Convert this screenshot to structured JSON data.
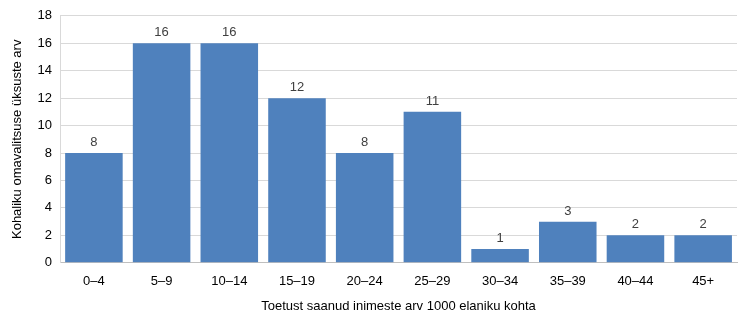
{
  "chart_data": {
    "type": "bar",
    "categories": [
      "0–4",
      "5–9",
      "10–14",
      "15–19",
      "20–24",
      "25–29",
      "30–34",
      "35–39",
      "40–44",
      "45+"
    ],
    "values": [
      8,
      16,
      16,
      12,
      8,
      11,
      1,
      3,
      2,
      2
    ],
    "color": "#4f81bd",
    "x_label": "Toetust saanud inimeste arv 1000 elaniku kohta",
    "y_label": "Kohaliku omavalitsuse üksuste arv",
    "ylim": [
      0,
      18
    ],
    "yticks": [
      0,
      2,
      4,
      6,
      8,
      10,
      12,
      14,
      16,
      18
    ],
    "grid": true,
    "data_labels": true
  }
}
